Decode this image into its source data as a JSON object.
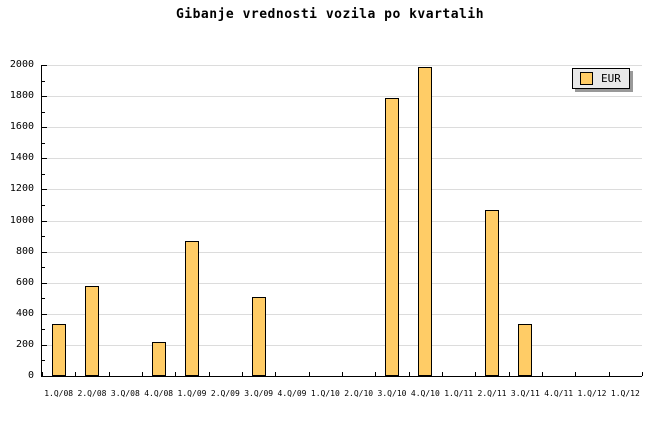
{
  "chart_data": {
    "type": "bar",
    "title": "Gibanje vrednosti vozila po kvartalih",
    "categories": [
      "1.Q/08",
      "2.Q/08",
      "3.Q/08",
      "4.Q/08",
      "1.Q/09",
      "2.Q/09",
      "3.Q/09",
      "4.Q/09",
      "1.Q/10",
      "2.Q/10",
      "3.Q/10",
      "4.Q/10",
      "1.Q/11",
      "2.Q/11",
      "3.Q/11",
      "4.Q/11",
      "1.Q/12",
      "1.Q/12"
    ],
    "series": [
      {
        "name": "EUR",
        "values": [
          330,
          570,
          0,
          210,
          860,
          0,
          500,
          0,
          0,
          0,
          1780,
          1980,
          0,
          1060,
          330,
          0,
          0,
          0
        ]
      }
    ],
    "xlabel": "",
    "ylabel": "",
    "ylim": [
      0,
      2000
    ],
    "y_major_step": 200,
    "y_minor_step": 100,
    "grid": "horizontal-major",
    "legend_position": "top-right",
    "colors": {
      "bar_fill": "#FFCC66",
      "bar_border": "#000000",
      "grid": "#DCDCDC",
      "axis": "#000000",
      "background": "#FFFFFF",
      "legend_bg": "#E9E9E9",
      "legend_shadow": "#999999"
    }
  }
}
